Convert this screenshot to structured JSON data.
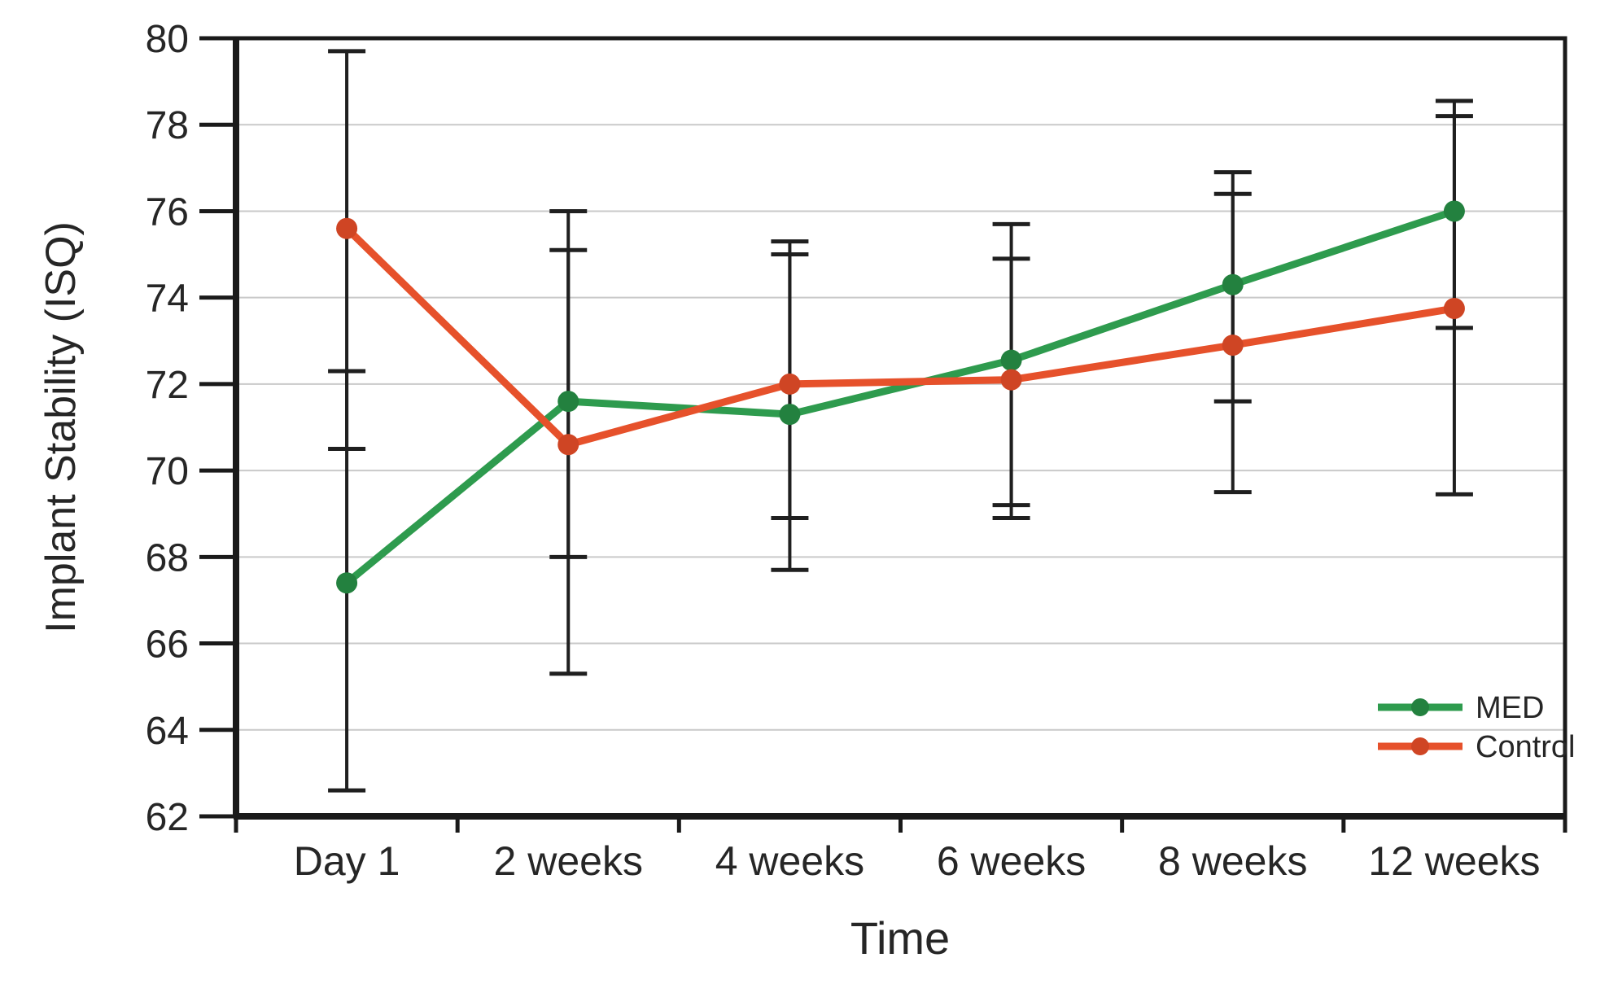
{
  "chart_data": {
    "type": "line",
    "title": "",
    "xlabel": "Time",
    "ylabel": "Implant Stability (ISQ)",
    "ylim": [
      62,
      80
    ],
    "yticks": [
      80,
      78,
      76,
      74,
      72,
      70,
      68,
      66,
      64,
      62
    ],
    "categories": [
      "Day 1",
      "2 weeks",
      "4 weeks",
      "6 weeks",
      "8 weeks",
      "12 weeks"
    ],
    "grid": "horizontal",
    "grid_color": "#c9c9c9",
    "axis_color": "#1a1a1a",
    "error_bar_color": "#1f1f1f",
    "text_color": "#262626",
    "legend_position": "inside-bottom-right",
    "series": [
      {
        "name": "MED",
        "color": "#2e9b4e",
        "marker_color": "#23813f",
        "values": [
          67.4,
          71.6,
          71.3,
          72.55,
          74.3,
          76.0
        ],
        "error_upper": [
          72.3,
          75.1,
          75.0,
          75.7,
          76.9,
          78.55
        ],
        "error_lower": [
          62.6,
          68.0,
          67.7,
          69.2,
          71.6,
          73.3
        ]
      },
      {
        "name": "Control",
        "color": "#e6512b",
        "marker_color": "#cf4524",
        "values": [
          75.6,
          70.6,
          72.0,
          72.1,
          72.9,
          73.75
        ],
        "error_upper": [
          79.7,
          76.0,
          75.3,
          74.9,
          76.4,
          78.2
        ],
        "error_lower": [
          70.5,
          65.3,
          68.9,
          68.9,
          69.5,
          69.45
        ]
      }
    ]
  }
}
